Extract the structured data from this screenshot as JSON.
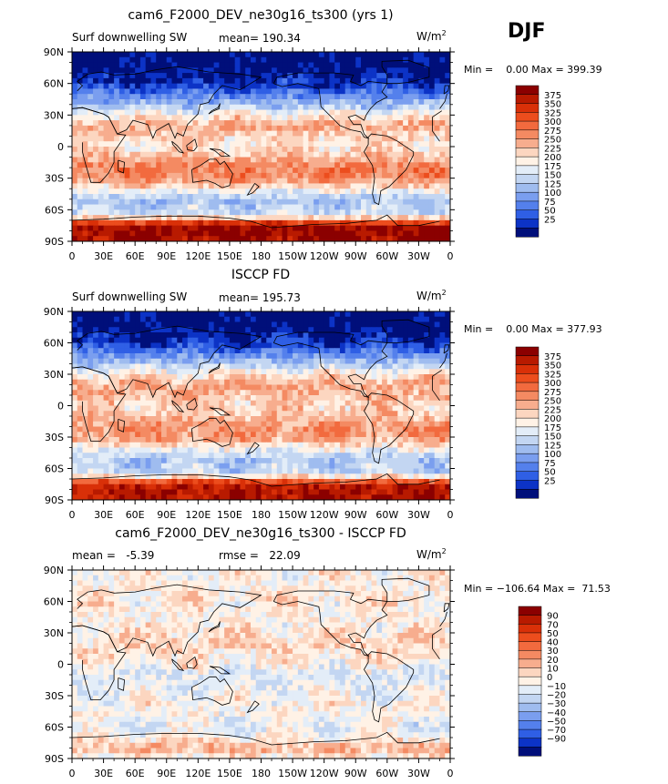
{
  "season": "DJF",
  "chart_data": [
    {
      "type": "heatmap",
      "title": "cam6_F2000_DEV_ne30g16_ts300 (yrs 1)",
      "left_label": "Surf downwelling SW",
      "stat_label": "mean= 190.34",
      "units": "W/m",
      "units_sup": "2",
      "min_max": "Min =    0.00 Max = 399.39",
      "x_ticks": [
        "0",
        "30E",
        "60E",
        "90E",
        "120E",
        "150E",
        "180",
        "150W",
        "120W",
        "90W",
        "60W",
        "30W",
        "0"
      ],
      "y_ticks": [
        "90N",
        "60N",
        "30N",
        "0",
        "30S",
        "60S",
        "90S"
      ],
      "colorbar_labels": [
        "375",
        "350",
        "325",
        "300",
        "275",
        "250",
        "225",
        "200",
        "175",
        "150",
        "125",
        "100",
        "75",
        "50",
        "25"
      ],
      "colors": [
        "#8b0000",
        "#b81a00",
        "#d93008",
        "#ec4d1d",
        "#f26a3e",
        "#f48a62",
        "#f7ad8e",
        "#fcd6c0",
        "#fff2e6",
        "#e3edf8",
        "#c3d6f2",
        "#9fbcef",
        "#7a9eef",
        "#5480ec",
        "#2f5fe5",
        "#0c33c6",
        "#000f7a"
      ],
      "lat_profile": [
        [
          -90,
          0.97
        ],
        [
          -75,
          0.96
        ],
        [
          -65,
          0.42
        ],
        [
          -50,
          0.33
        ],
        [
          -40,
          0.52
        ],
        [
          -30,
          0.68
        ],
        [
          -20,
          0.7
        ],
        [
          -10,
          0.6
        ],
        [
          0,
          0.52
        ],
        [
          10,
          0.56
        ],
        [
          20,
          0.62
        ],
        [
          30,
          0.5
        ],
        [
          40,
          0.33
        ],
        [
          50,
          0.2
        ],
        [
          60,
          0.08
        ],
        [
          75,
          0.02
        ],
        [
          90,
          0.0
        ]
      ]
    },
    {
      "type": "heatmap",
      "title": "ISCCP FD",
      "left_label": "Surf downwelling SW",
      "stat_label": "mean= 195.73",
      "units": "W/m",
      "units_sup": "2",
      "min_max": "Min =    0.00 Max = 377.93",
      "x_ticks": [
        "0",
        "30E",
        "60E",
        "90E",
        "120E",
        "150E",
        "180",
        "150W",
        "120W",
        "90W",
        "60W",
        "30W",
        "0"
      ],
      "y_ticks": [
        "90N",
        "60N",
        "30N",
        "0",
        "30S",
        "60S",
        "90S"
      ],
      "colorbar_labels": [
        "375",
        "350",
        "325",
        "300",
        "275",
        "250",
        "225",
        "200",
        "175",
        "150",
        "125",
        "100",
        "75",
        "50",
        "25"
      ],
      "colors": [
        "#8b0000",
        "#b81a00",
        "#d93008",
        "#ec4d1d",
        "#f26a3e",
        "#f48a62",
        "#f7ad8e",
        "#fcd6c0",
        "#fff2e6",
        "#e3edf8",
        "#c3d6f2",
        "#9fbcef",
        "#7a9eef",
        "#5480ec",
        "#2f5fe5",
        "#0c33c6",
        "#000f7a"
      ],
      "lat_profile": [
        [
          -90,
          0.94
        ],
        [
          -75,
          0.9
        ],
        [
          -65,
          0.4
        ],
        [
          -50,
          0.35
        ],
        [
          -40,
          0.5
        ],
        [
          -30,
          0.66
        ],
        [
          -20,
          0.66
        ],
        [
          -10,
          0.58
        ],
        [
          0,
          0.55
        ],
        [
          10,
          0.6
        ],
        [
          20,
          0.62
        ],
        [
          30,
          0.52
        ],
        [
          40,
          0.35
        ],
        [
          50,
          0.22
        ],
        [
          60,
          0.08
        ],
        [
          75,
          0.02
        ],
        [
          90,
          0.0
        ]
      ]
    },
    {
      "type": "heatmap",
      "title": "cam6_F2000_DEV_ne30g16_ts300 - ISCCP FD",
      "left_label": "mean =   -5.39",
      "stat_label": "rmse =   22.09",
      "units": "W/m",
      "units_sup": "2",
      "min_max": "Min = −106.64 Max =  71.53",
      "x_ticks": [
        "0",
        "30E",
        "60E",
        "90E",
        "120E",
        "150E",
        "180",
        "150W",
        "120W",
        "90W",
        "60W",
        "30W",
        "0"
      ],
      "y_ticks": [
        "90N",
        "60N",
        "30N",
        "0",
        "30S",
        "60S",
        "90S"
      ],
      "colorbar_labels": [
        "90",
        "70",
        "50",
        "40",
        "30",
        "20",
        "10",
        "0",
        "−10",
        "−20",
        "−30",
        "−40",
        "−50",
        "−70",
        "−90"
      ],
      "colors": [
        "#8b0000",
        "#b81a00",
        "#d93008",
        "#ec4d1d",
        "#f26a3e",
        "#f48a62",
        "#f7ad8e",
        "#fcd6c0",
        "#fff2e6",
        "#e3edf8",
        "#c3d6f2",
        "#9fbcef",
        "#7a9eef",
        "#5480ec",
        "#2f5fe5",
        "#0c33c6",
        "#000f7a"
      ],
      "lat_profile": [
        [
          -90,
          0.5
        ],
        [
          -80,
          0.62
        ],
        [
          -70,
          0.5
        ],
        [
          -60,
          0.45
        ],
        [
          -40,
          0.5
        ],
        [
          -20,
          0.45
        ],
        [
          -10,
          0.42
        ],
        [
          0,
          0.5
        ],
        [
          20,
          0.55
        ],
        [
          40,
          0.5
        ],
        [
          60,
          0.52
        ],
        [
          80,
          0.5
        ],
        [
          90,
          0.5
        ]
      ]
    }
  ]
}
